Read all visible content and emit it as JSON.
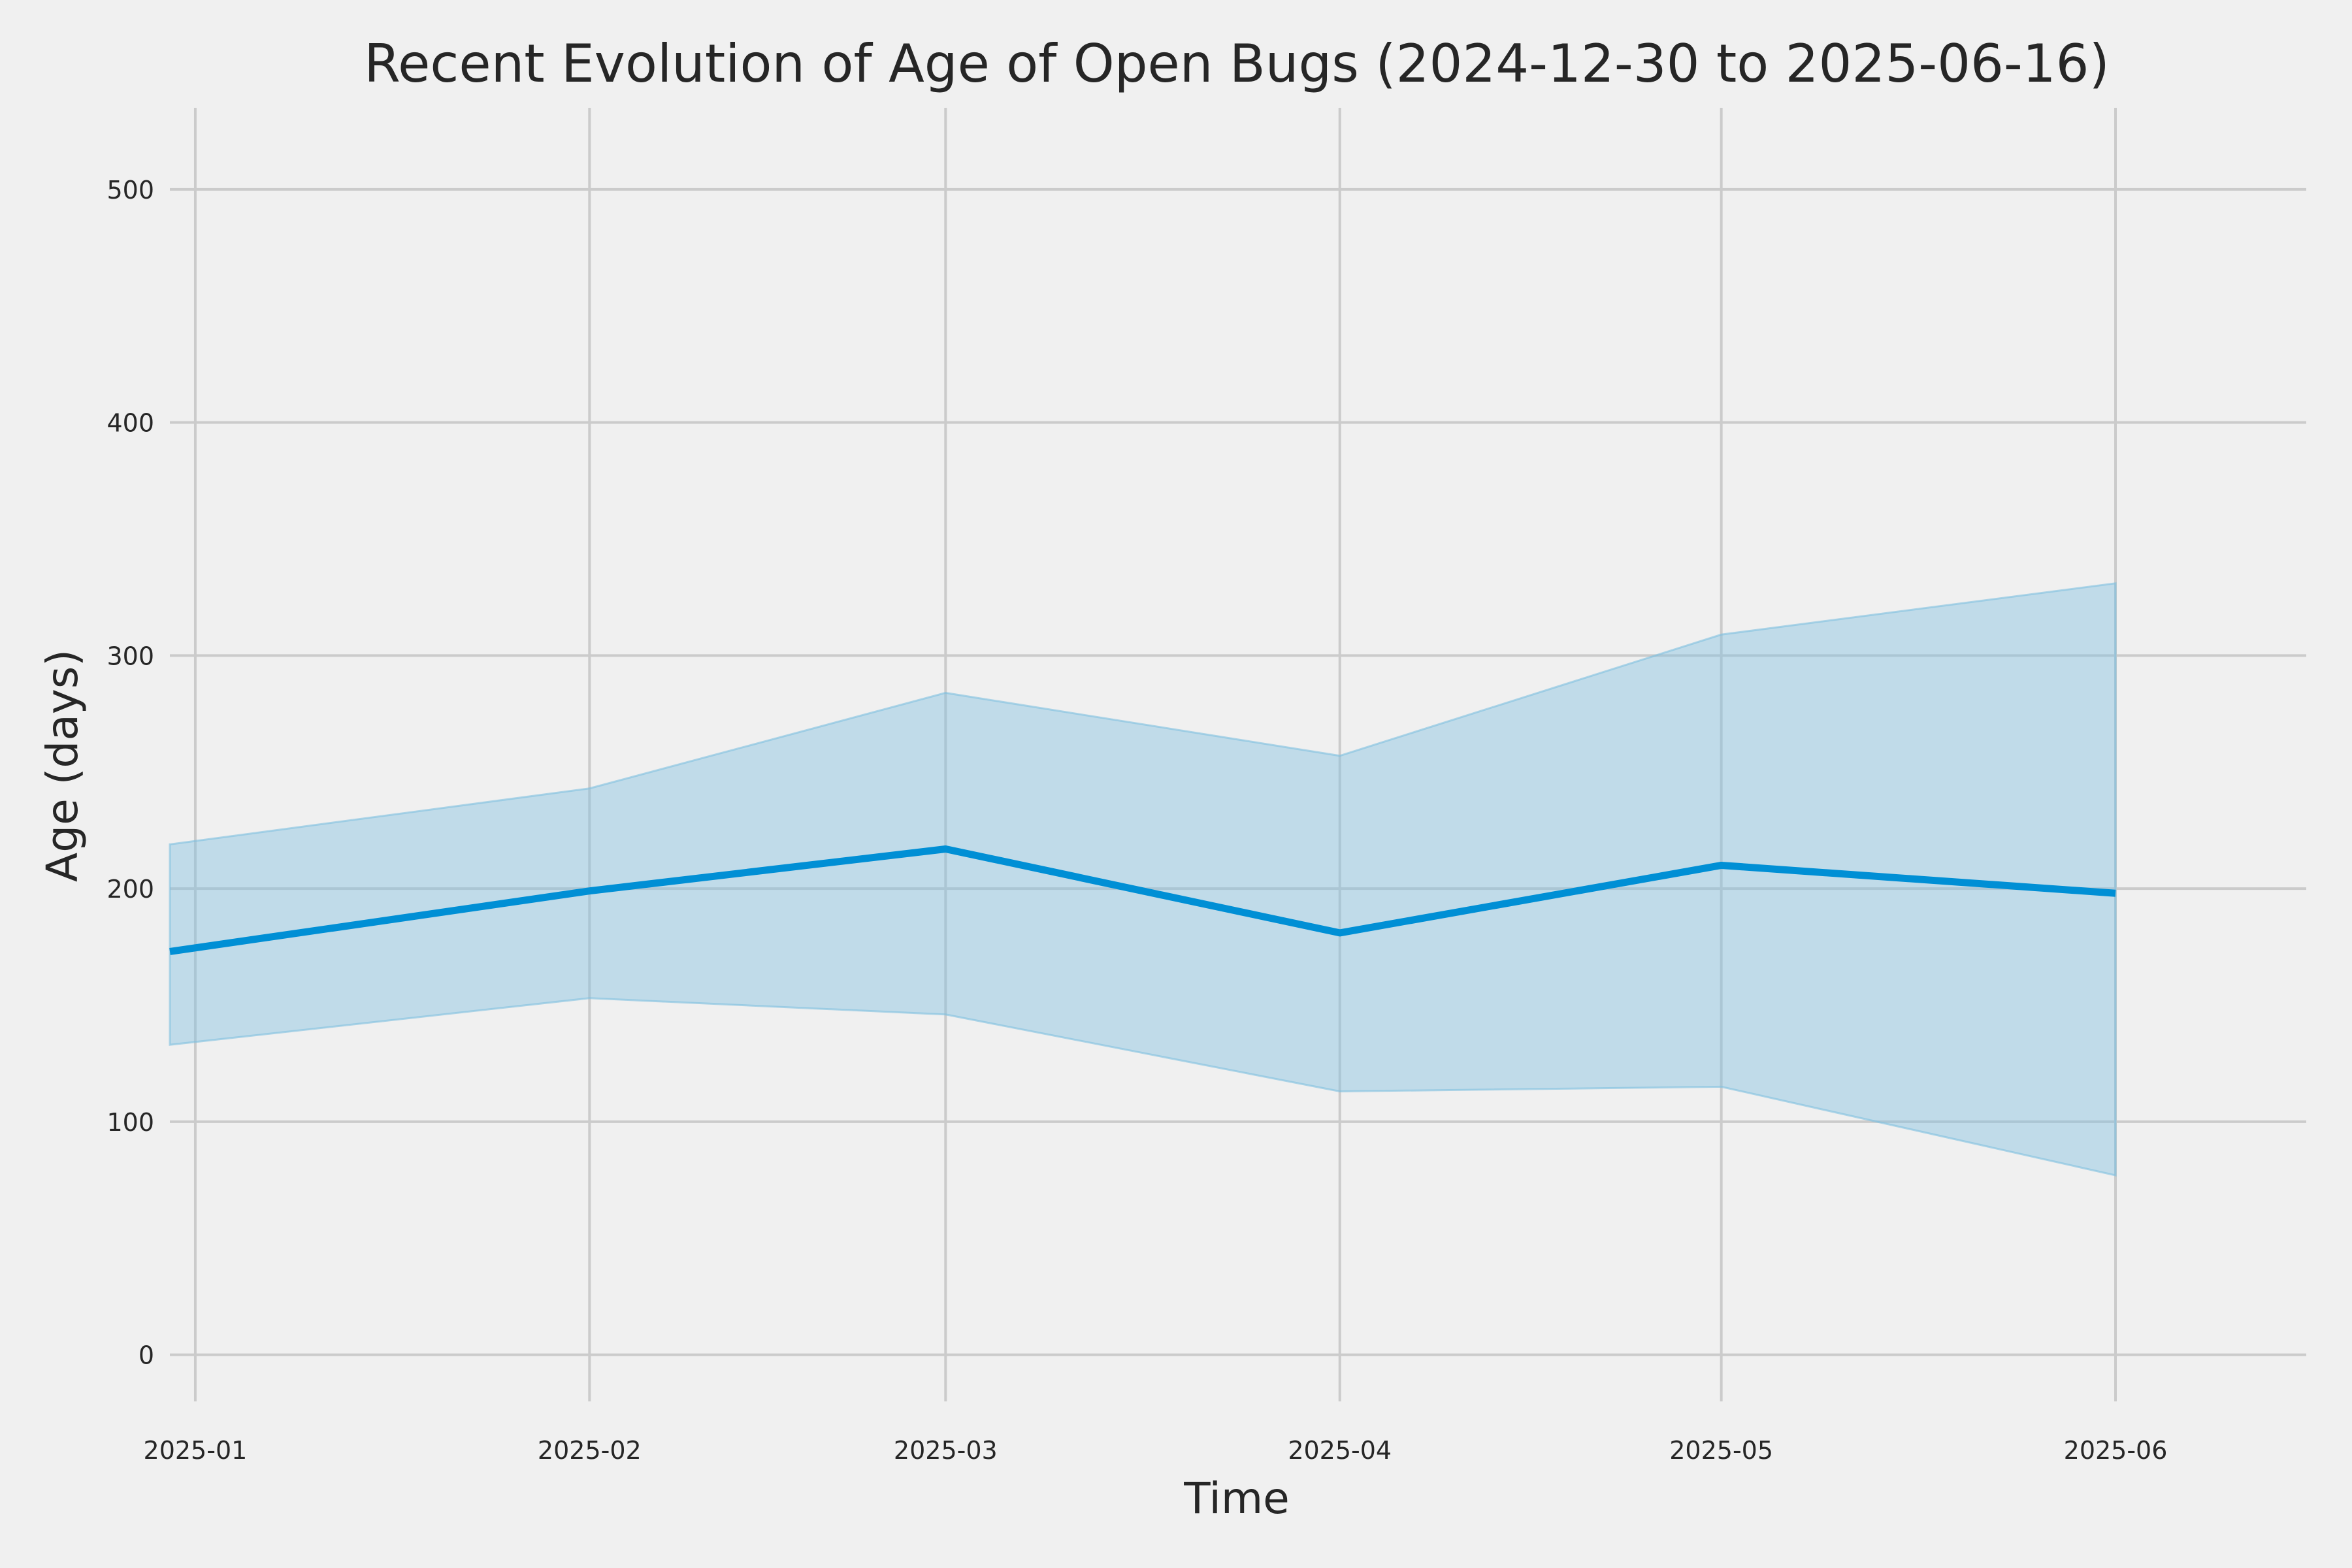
{
  "chart_data": {
    "type": "line",
    "title": "Recent Evolution of Age of Open Bugs (2024-12-30 to 2025-06-16)",
    "xlabel": "Time",
    "ylabel": "Age (days)",
    "x_ticks": [
      "2025-01",
      "2025-02",
      "2025-03",
      "2025-04",
      "2025-05",
      "2025-06"
    ],
    "y_ticks": [
      0,
      100,
      200,
      300,
      400,
      500
    ],
    "xlim": [
      "2024-12-30",
      "2025-06-16"
    ],
    "ylim": [
      -20,
      535
    ],
    "grid": true,
    "colors": {
      "background": "#f0f0f0",
      "line": "#008fd5",
      "band": "#7fbfe0",
      "grid": "#cbcbcb",
      "text": "#262626"
    },
    "series": [
      {
        "x": [
          "2024-12-30",
          "2025-02-01",
          "2025-03-01",
          "2025-04-01",
          "2025-05-01",
          "2025-06-01"
        ],
        "y": [
          173,
          199,
          217,
          181,
          210,
          198
        ],
        "lower": [
          133,
          153,
          146,
          113,
          115,
          77
        ],
        "upper": [
          219,
          243,
          284,
          257,
          309,
          331
        ]
      }
    ]
  }
}
